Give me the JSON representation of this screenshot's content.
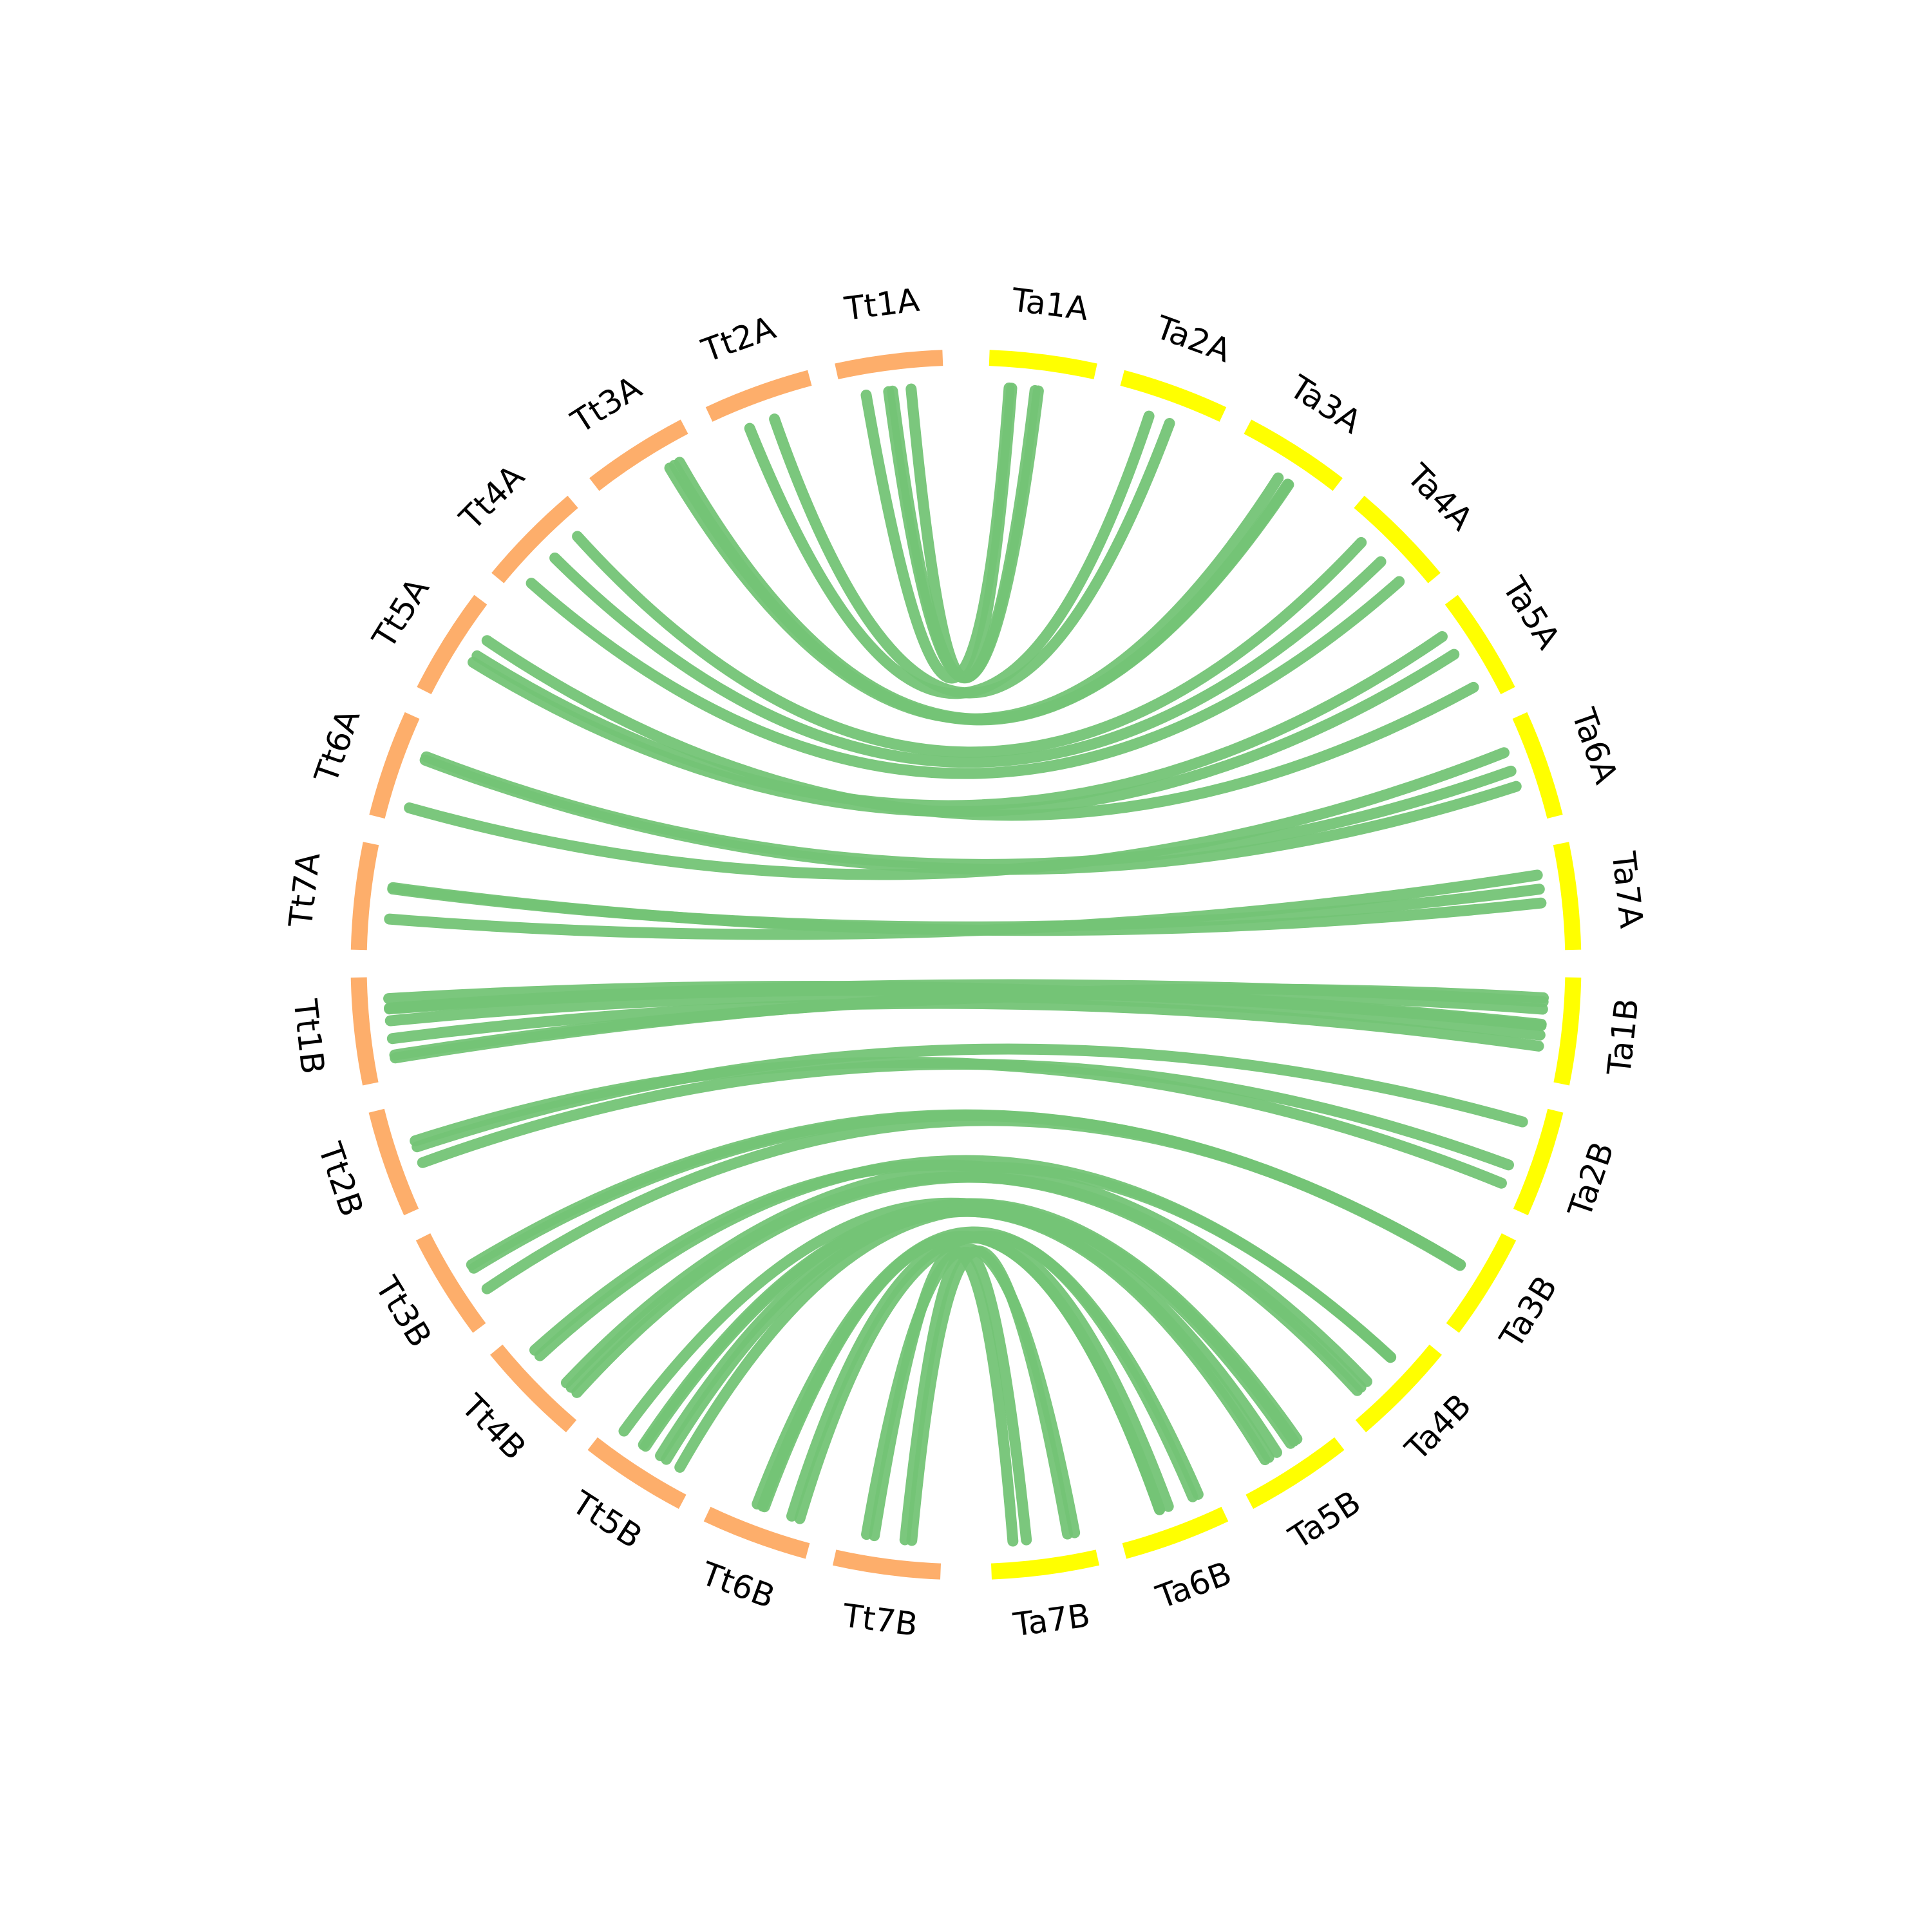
{
  "segments": [
    {
      "label": "Ta1A",
      "color": "#ffff00"
    },
    {
      "label": "Ta2A",
      "color": "#ffff00"
    },
    {
      "label": "Ta3A",
      "color": "#ffff00"
    },
    {
      "label": "Ta4A",
      "color": "#ffff00"
    },
    {
      "label": "Ta5A",
      "color": "#ffff00"
    },
    {
      "label": "Ta6A",
      "color": "#ffff00"
    },
    {
      "label": "Ta7A",
      "color": "#ffff00"
    },
    {
      "label": "Ta1B",
      "color": "#ffff00"
    },
    {
      "label": "Ta2B",
      "color": "#ffff00"
    },
    {
      "label": "Ta3B",
      "color": "#ffff00"
    },
    {
      "label": "Ta4B",
      "color": "#ffff00"
    },
    {
      "label": "Ta5B",
      "color": "#ffff00"
    },
    {
      "label": "Ta6B",
      "color": "#ffff00"
    },
    {
      "label": "Ta7B",
      "color": "#ffff00"
    },
    {
      "label": "Tt1A",
      "color": "#fdae6b"
    },
    {
      "label": "Tt2A",
      "color": "#fdae6b"
    },
    {
      "label": "Tt3A",
      "color": "#fdae6b"
    },
    {
      "label": "Tt4A",
      "color": "#fdae6b"
    },
    {
      "label": "Tt5A",
      "color": "#fdae6b"
    },
    {
      "label": "Tt6A",
      "color": "#fdae6b"
    },
    {
      "label": "Tt7A",
      "color": "#fdae6b"
    },
    {
      "label": "Tt1B",
      "color": "#fdae6b"
    },
    {
      "label": "Tt2B",
      "color": "#fdae6b"
    },
    {
      "label": "Tt3B",
      "color": "#fdae6b"
    },
    {
      "label": "Tt4B",
      "color": "#fdae6b"
    },
    {
      "label": "Tt5B",
      "color": "#fdae6b"
    },
    {
      "label": "Tt6B",
      "color": "#fdae6b"
    },
    {
      "label": "Tt7B",
      "color": "#fdae6b"
    }
  ],
  "link_color": "#74c476"
}
